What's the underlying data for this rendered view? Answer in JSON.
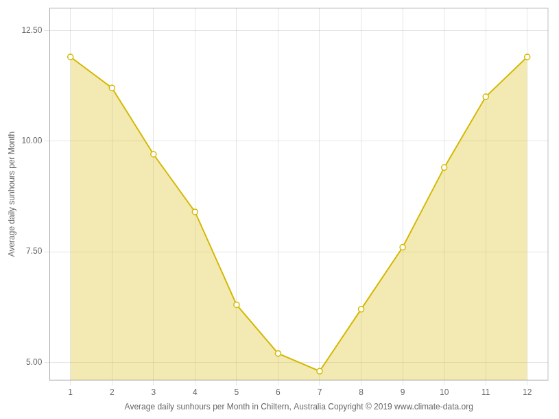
{
  "chart_data": {
    "type": "line",
    "x": [
      1,
      2,
      3,
      4,
      5,
      6,
      7,
      8,
      9,
      10,
      11,
      12
    ],
    "values": [
      11.9,
      11.2,
      9.7,
      8.4,
      6.3,
      5.2,
      4.8,
      6.2,
      7.6,
      9.4,
      11.0,
      11.9
    ],
    "color": "#d4b800",
    "marker": "circle",
    "xlabel": "Average daily sunhours per Month in Chiltern, Australia Copyright © 2019 www.climate-data.org",
    "ylabel": "Average daily sunhours per Month",
    "xlim": [
      0.5,
      12.5
    ],
    "ylim": [
      4.6,
      13.0
    ],
    "xticks": [
      1,
      2,
      3,
      4,
      5,
      6,
      7,
      8,
      9,
      10,
      11,
      12
    ],
    "yticks": [
      {
        "value": 5.0,
        "label": "5.00"
      },
      {
        "value": 7.5,
        "label": "7.50"
      },
      {
        "value": 10.0,
        "label": "10.00"
      },
      {
        "value": 12.5,
        "label": "12.50"
      }
    ],
    "grid": true
  }
}
